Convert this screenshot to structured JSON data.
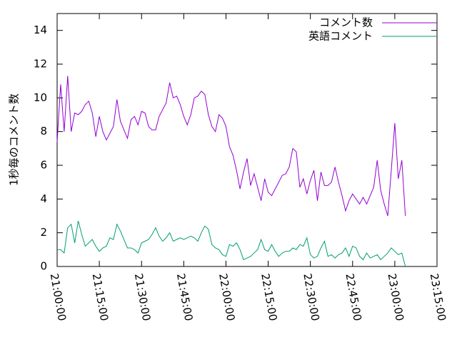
{
  "chart_data": {
    "type": "line",
    "y_label": "1秒毎のコメント数",
    "x": [
      "21:00:00",
      "21:01:15",
      "21:02:30",
      "21:03:45",
      "21:05:00",
      "21:06:15",
      "21:07:30",
      "21:08:45",
      "21:10:00",
      "21:11:15",
      "21:12:30",
      "21:13:45",
      "21:15:00",
      "21:16:15",
      "21:17:30",
      "21:18:45",
      "21:20:00",
      "21:21:15",
      "21:22:30",
      "21:23:45",
      "21:25:00",
      "21:26:15",
      "21:27:30",
      "21:28:45",
      "21:30:00",
      "21:31:15",
      "21:32:30",
      "21:33:45",
      "21:35:00",
      "21:36:15",
      "21:37:30",
      "21:38:45",
      "21:40:00",
      "21:41:15",
      "21:42:30",
      "21:43:45",
      "21:45:00",
      "21:46:15",
      "21:47:30",
      "21:48:45",
      "21:50:00",
      "21:51:15",
      "21:52:30",
      "21:53:45",
      "21:55:00",
      "21:56:15",
      "21:57:30",
      "21:58:45",
      "22:00:00",
      "22:01:15",
      "22:02:30",
      "22:03:45",
      "22:05:00",
      "22:06:15",
      "22:07:30",
      "22:08:45",
      "22:10:00",
      "22:11:15",
      "22:12:30",
      "22:13:45",
      "22:15:00",
      "22:16:15",
      "22:17:30",
      "22:18:45",
      "22:20:00",
      "22:21:15",
      "22:22:30",
      "22:23:45",
      "22:25:00",
      "22:26:15",
      "22:27:30",
      "22:28:45",
      "22:30:00",
      "22:31:15",
      "22:32:30",
      "22:33:45",
      "22:35:00",
      "22:36:15",
      "22:37:30",
      "22:38:45",
      "22:40:00",
      "22:41:15",
      "22:42:30",
      "22:43:45",
      "22:45:00",
      "22:46:15",
      "22:47:30",
      "22:48:45",
      "22:50:00",
      "22:51:15",
      "22:52:30",
      "22:53:45",
      "22:55:00",
      "22:56:15",
      "22:57:30",
      "22:58:45",
      "23:00:00",
      "23:01:15",
      "23:02:30",
      "23:03:45"
    ],
    "series": [
      {
        "name": "コメント数",
        "color": "#9400d3",
        "values": [
          7.4,
          10.8,
          8.0,
          11.3,
          8.0,
          9.1,
          9.0,
          9.2,
          9.6,
          9.8,
          9.1,
          7.7,
          8.9,
          8.0,
          7.5,
          7.9,
          8.3,
          9.9,
          8.6,
          8.1,
          7.6,
          8.7,
          8.9,
          8.4,
          9.2,
          9.1,
          8.3,
          8.1,
          8.1,
          8.9,
          9.3,
          9.7,
          10.9,
          10.0,
          10.1,
          9.6,
          8.9,
          8.4,
          9.0,
          10.0,
          10.1,
          10.4,
          10.2,
          9.0,
          8.3,
          8.0,
          9.0,
          8.8,
          8.3,
          7.1,
          6.6,
          5.7,
          4.6,
          5.6,
          6.4,
          4.8,
          5.5,
          4.7,
          3.9,
          5.2,
          4.4,
          4.2,
          4.6,
          5.0,
          5.4,
          5.5,
          5.9,
          7.0,
          6.8,
          4.7,
          5.2,
          4.3,
          5.1,
          5.7,
          3.9,
          5.6,
          4.8,
          4.8,
          5.0,
          5.9,
          5.0,
          4.2,
          3.3,
          3.9,
          4.3,
          4.0,
          3.7,
          4.1,
          3.7,
          4.2,
          4.7,
          6.3,
          4.5,
          3.7,
          3.0,
          5.7,
          8.5,
          5.2,
          6.3,
          3.0
        ]
      },
      {
        "name": "英語コメント",
        "color": "#009e73",
        "values": [
          1.0,
          1.0,
          0.8,
          2.3,
          2.5,
          1.4,
          2.7,
          1.9,
          1.2,
          1.4,
          1.6,
          1.2,
          0.9,
          1.1,
          1.2,
          1.7,
          1.6,
          2.5,
          2.1,
          1.6,
          1.1,
          1.1,
          1.0,
          0.8,
          1.4,
          1.5,
          1.6,
          1.9,
          2.3,
          1.8,
          1.5,
          1.7,
          2.0,
          1.5,
          1.6,
          1.7,
          1.6,
          1.7,
          1.8,
          1.7,
          1.5,
          2.0,
          2.4,
          2.2,
          1.3,
          1.1,
          1.0,
          0.7,
          0.6,
          1.3,
          1.2,
          1.4,
          1.0,
          0.4,
          0.5,
          0.6,
          0.8,
          1.0,
          1.6,
          1.0,
          0.9,
          1.3,
          0.9,
          0.6,
          0.8,
          0.9,
          0.9,
          1.1,
          1.0,
          1.3,
          1.2,
          1.7,
          0.7,
          0.5,
          0.6,
          1.1,
          1.5,
          0.6,
          0.7,
          0.5,
          0.7,
          0.8,
          1.1,
          0.6,
          1.2,
          1.1,
          0.6,
          0.4,
          0.8,
          0.5,
          0.6,
          0.7,
          0.4,
          0.6,
          0.8,
          1.1,
          0.9,
          0.7,
          0.8,
          0.0
        ]
      }
    ],
    "xlim": [
      "21:00:00",
      "23:15:00"
    ],
    "xticks": [
      "21:00:00",
      "21:15:00",
      "21:30:00",
      "21:45:00",
      "22:00:00",
      "22:15:00",
      "22:30:00",
      "22:45:00",
      "23:00:00",
      "23:15:00"
    ],
    "ylim": [
      0,
      15
    ],
    "yticks": [
      0,
      2,
      4,
      6,
      8,
      10,
      12,
      14
    ],
    "legend": "top-right"
  }
}
